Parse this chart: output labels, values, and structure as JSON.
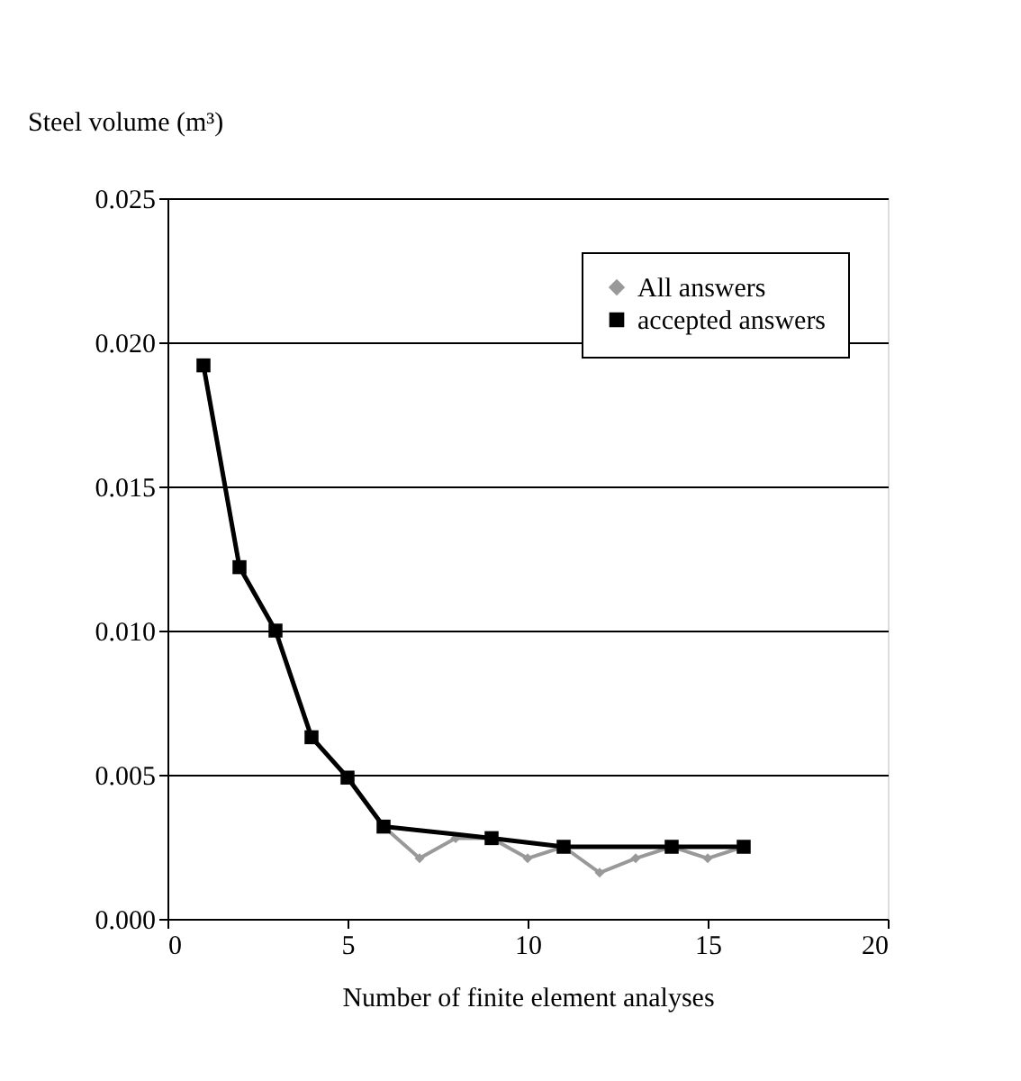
{
  "chart_data": {
    "type": "line",
    "xlabel": "Number of finite element analyses",
    "ylabel": "Steel volume (m³)",
    "xlim": [
      0,
      20
    ],
    "xticks": [
      0,
      5,
      10,
      15,
      20
    ],
    "ylim": [
      0,
      0.025
    ],
    "yticks": [
      {
        "value": 0,
        "label": "0.000"
      },
      {
        "value": 0.005,
        "label": "0.005"
      },
      {
        "value": 0.01,
        "label": "0.010"
      },
      {
        "value": 0.015,
        "label": "0.015"
      },
      {
        "value": 0.02,
        "label": "0.020"
      },
      {
        "value": 0.025,
        "label": "0.025"
      }
    ],
    "grid": "y",
    "legend": "top right",
    "series": [
      {
        "name": "All answers",
        "color": "#999999",
        "marker": "diamond",
        "x": [
          1,
          2,
          3,
          4,
          5,
          6,
          7,
          8,
          9,
          10,
          11,
          12,
          13,
          14,
          15,
          16
        ],
        "values": [
          0.0192,
          0.0122,
          0.01,
          0.0063,
          0.0049,
          0.0032,
          0.0021,
          0.0028,
          0.0028,
          0.0021,
          0.0025,
          0.0016,
          0.0021,
          0.0025,
          0.0021,
          0.0025
        ]
      },
      {
        "name": "accepted answers",
        "color": "#000000",
        "marker": "square",
        "x": [
          1,
          2,
          3,
          4,
          5,
          6,
          9,
          11,
          14,
          16
        ],
        "values": [
          0.0192,
          0.0122,
          0.01,
          0.0063,
          0.0049,
          0.0032,
          0.0028,
          0.0025,
          0.0025,
          0.0025
        ]
      }
    ]
  }
}
